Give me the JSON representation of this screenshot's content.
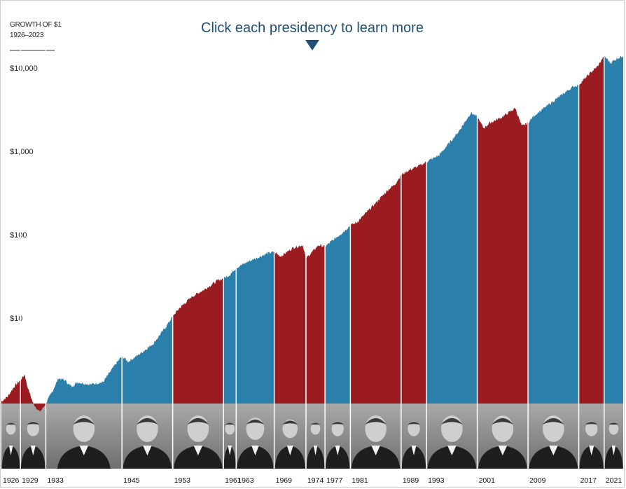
{
  "header": {
    "title_line1": "GROWTH OF $1",
    "title_line2": "1926–2023",
    "cta": "Click each presidency to learn more"
  },
  "colors": {
    "republican": "#9b1c20",
    "democrat": "#2a7fab",
    "photo_strip": "#8a8a8a",
    "cta": "#1f4f78"
  },
  "chart_data": {
    "type": "area",
    "title": "GROWTH OF $1",
    "subtitle": "1926–2023",
    "y_scale": "log",
    "ylim": [
      0.8,
      16000
    ],
    "yticks": [
      {
        "value": 10,
        "label": "$10"
      },
      {
        "value": 100,
        "label": "$100"
      },
      {
        "value": 1000,
        "label": "$1,000"
      },
      {
        "value": 10000,
        "label": "$10,000"
      }
    ],
    "xlim": [
      1926,
      2024
    ],
    "series": [
      {
        "x": [
          1926,
          1927,
          1928,
          1929.7,
          1930,
          1931,
          1932,
          1932.5,
          1933,
          1934,
          1935,
          1936,
          1937,
          1938,
          1940,
          1942,
          1944,
          1945,
          1946,
          1948,
          1950,
          1952,
          1953,
          1954,
          1956,
          1958,
          1960,
          1961,
          1962,
          1963,
          1965,
          1968,
          1969,
          1970,
          1972,
          1973.5,
          1974,
          1974.8,
          1976,
          1977,
          1980,
          1981,
          1982,
          1985,
          1987,
          1988,
          1989,
          1990,
          1992,
          1993,
          1995,
          1998,
          2000,
          2001,
          2002,
          2003,
          2005,
          2007,
          2008,
          2009,
          2010,
          2013,
          2016,
          2017,
          2018,
          2019,
          2020,
          2021,
          2022,
          2023,
          2024
        ],
        "y": [
          1.0,
          1.15,
          1.5,
          2.1,
          1.6,
          0.95,
          0.75,
          0.82,
          0.95,
          1.3,
          1.9,
          1.8,
          1.5,
          1.7,
          1.6,
          1.7,
          2.8,
          3.5,
          3.0,
          3.8,
          5.0,
          8.0,
          10.5,
          13.0,
          18.0,
          22.0,
          28.0,
          30.0,
          33.0,
          40.0,
          48.0,
          60.0,
          62.0,
          55.0,
          70.0,
          75.0,
          52.0,
          60.0,
          75.0,
          72.0,
          110.0,
          130.0,
          140.0,
          240.0,
          350.0,
          400.0,
          520.0,
          580.0,
          680.0,
          750.0,
          900.0,
          1700.0,
          2900.0,
          2600.0,
          1900.0,
          2200.0,
          2600.0,
          3300.0,
          2000.0,
          2200.0,
          2700.0,
          4000.0,
          5900.0,
          6300.0,
          7500.0,
          9000.0,
          10500.0,
          14000.0,
          11500.0,
          13000.0,
          14000.0
        ]
      }
    ],
    "presidencies": [
      {
        "start": 1926,
        "end": 1929,
        "label": "1926",
        "party": "republican"
      },
      {
        "start": 1929,
        "end": 1933,
        "label": "1929",
        "party": "republican"
      },
      {
        "start": 1933,
        "end": 1945,
        "label": "1933",
        "party": "democrat"
      },
      {
        "start": 1945,
        "end": 1953,
        "label": "1945",
        "party": "democrat"
      },
      {
        "start": 1953,
        "end": 1961,
        "label": "1953",
        "party": "republican"
      },
      {
        "start": 1961,
        "end": 1963,
        "label": "1961",
        "party": "democrat"
      },
      {
        "start": 1963,
        "end": 1969,
        "label": "1963",
        "party": "democrat"
      },
      {
        "start": 1969,
        "end": 1974,
        "label": "1969",
        "party": "republican"
      },
      {
        "start": 1974,
        "end": 1977,
        "label": "1974",
        "party": "republican"
      },
      {
        "start": 1977,
        "end": 1981,
        "label": "1977",
        "party": "democrat"
      },
      {
        "start": 1981,
        "end": 1989,
        "label": "1981",
        "party": "republican"
      },
      {
        "start": 1989,
        "end": 1993,
        "label": "1989",
        "party": "republican"
      },
      {
        "start": 1993,
        "end": 2001,
        "label": "1993",
        "party": "democrat"
      },
      {
        "start": 2001,
        "end": 2009,
        "label": "2001",
        "party": "republican"
      },
      {
        "start": 2009,
        "end": 2017,
        "label": "2009",
        "party": "democrat"
      },
      {
        "start": 2017,
        "end": 2021,
        "label": "2017",
        "party": "republican"
      },
      {
        "start": 2021,
        "end": 2024,
        "label": "2021",
        "party": "democrat"
      }
    ]
  }
}
